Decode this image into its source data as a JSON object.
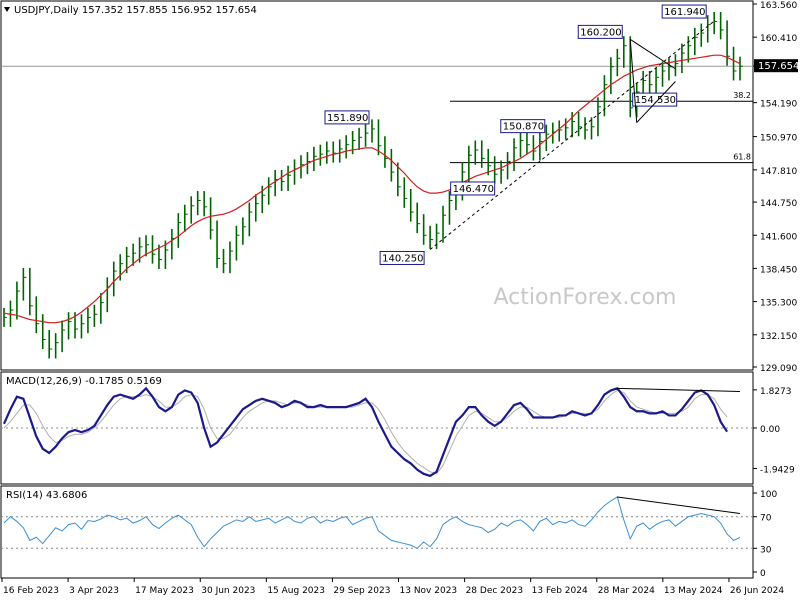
{
  "header": {
    "symbol_line": "USDJPY,Daily  157.352 157.855 156.952 157.654",
    "macd_title": "MACD(12,26,9) -0.1785 0.5169",
    "rsi_title": "RSI(14) 43.6806"
  },
  "watermark": "ActionForex.com",
  "price_badge": "157.654",
  "colors": {
    "candle": "#006400",
    "ma": "#d21e1e",
    "macd": "#1a1a8c",
    "signal": "#b0b0b0",
    "rsi": "#3a8fd6",
    "badge_bg": "#000000",
    "badge_text": "#ffffff"
  },
  "chart_data": [
    {
      "type": "line",
      "title": "",
      "ylim": [
        129.09,
        163.56
      ],
      "y_ticks": [
        "163.560",
        "160.410",
        "157.654",
        "154.190",
        "150.970",
        "147.810",
        "144.750",
        "141.600",
        "138.450",
        "135.300",
        "132.150",
        "129.090"
      ],
      "x_ticks": [
        "16 Feb 2023",
        "3 Apr 2023",
        "17 May 2023",
        "30 Jun 2023",
        "15 Aug 2023",
        "29 Sep 2023",
        "13 Nov 2023",
        "28 Dec 2023",
        "13 Feb 2024",
        "28 Mar 2024",
        "13 May 2024",
        "26 Jun 2024"
      ],
      "series": [
        {
          "values": [
            133.8,
            134.5,
            136.3,
            137.6,
            134.9,
            133.2,
            131.7,
            130.8,
            131.4,
            132.6,
            133.4,
            132.7,
            133.2,
            133.8,
            134.1,
            135.2,
            136.7,
            138.2,
            138.9,
            139.6,
            139.9,
            140.5,
            140.7,
            139.8,
            139.3,
            140.2,
            141.3,
            142.8,
            143.6,
            144.4,
            144.9,
            144.3,
            142.1,
            139.4,
            138.9,
            140.1,
            141.6,
            142.4,
            143.8,
            144.6,
            145.4,
            146.2,
            146.9,
            146.7,
            147.3,
            147.9,
            148.3,
            148.6,
            149.1,
            149.3,
            149.6,
            149.4,
            149.8,
            150.2,
            150.6,
            150.9,
            151.3,
            151.7,
            150.1,
            148.9,
            147.6,
            146.2,
            145.1,
            143.8,
            142.7,
            141.6,
            141.2,
            141.8,
            143.5,
            144.9,
            145.8,
            147.6,
            149.2,
            149.7,
            148.9,
            148.2,
            147.4,
            147.8,
            148.6,
            149.9,
            150.6,
            150.2,
            149.6,
            150.5,
            151.2,
            151.4,
            151.6,
            151.8,
            152.4,
            151.9,
            151.6,
            151.9,
            153.8,
            155.9,
            157.6,
            158.4,
            159.6,
            153.7,
            155.2,
            156.3,
            155.9,
            156.6,
            157.2,
            157.6,
            157.9,
            158.9,
            159.6,
            160.4,
            160.8,
            161.6,
            161.9,
            161.1,
            158.6,
            157.2,
            157.654
          ],
          "color": "#006400"
        },
        {
          "values": [
            134.2,
            134.1,
            134.0,
            133.8,
            133.6,
            133.5,
            133.4,
            133.3,
            133.3,
            133.4,
            133.6,
            133.9,
            134.3,
            134.8,
            135.3,
            135.9,
            136.5,
            137.2,
            137.8,
            138.4,
            138.9,
            139.4,
            139.8,
            140.1,
            140.4,
            140.7,
            141.1,
            141.5,
            142.0,
            142.5,
            142.9,
            143.2,
            143.4,
            143.5,
            143.6,
            143.8,
            144.1,
            144.5,
            144.9,
            145.4,
            145.8,
            146.3,
            146.7,
            147.1,
            147.5,
            147.8,
            148.1,
            148.4,
            148.7,
            148.9,
            149.1,
            149.3,
            149.4,
            149.6,
            149.7,
            149.8,
            149.9,
            149.9,
            149.6,
            149.2,
            148.7,
            148.1,
            147.5,
            146.8,
            146.2,
            145.8,
            145.6,
            145.6,
            145.7,
            145.9,
            146.2,
            146.6,
            146.9,
            147.2,
            147.4,
            147.6,
            147.8,
            148.0,
            148.3,
            148.6,
            148.9,
            149.3,
            149.7,
            150.2,
            150.7,
            151.2,
            151.7,
            152.2,
            152.8,
            153.4,
            153.9,
            154.4,
            154.9,
            155.4,
            155.9,
            156.3,
            156.7,
            157.0,
            157.3,
            157.5,
            157.7,
            157.8,
            157.9,
            158.0,
            158.1,
            158.2,
            158.3,
            158.4,
            158.5,
            158.6,
            158.7,
            158.7,
            158.5,
            158.2,
            157.9
          ],
          "color": "#d21e1e"
        }
      ],
      "annotations": [
        "151.890",
        "150.870",
        "146.470",
        "140.250",
        "160.200",
        "154.530",
        "161.940"
      ],
      "fib_levels": [
        {
          "label": "38.2",
          "value": 154.33
        },
        {
          "label": "61.8",
          "value": 148.5
        }
      ]
    },
    {
      "type": "line",
      "title": "",
      "ylim": [
        -2.4,
        2.3
      ],
      "y_ticks": [
        "1.8273",
        "0.00",
        "-1.9429"
      ],
      "series": [
        {
          "values": [
            0.2,
            0.9,
            1.5,
            1.4,
            0.5,
            -0.4,
            -1.0,
            -1.2,
            -0.9,
            -0.5,
            -0.2,
            -0.1,
            -0.2,
            -0.1,
            0.1,
            0.6,
            1.1,
            1.5,
            1.6,
            1.5,
            1.4,
            1.6,
            1.9,
            1.5,
            1.0,
            0.8,
            1.0,
            1.6,
            1.8,
            1.7,
            1.2,
            0.0,
            -0.9,
            -0.7,
            -0.3,
            0.1,
            0.5,
            0.9,
            1.1,
            1.3,
            1.4,
            1.3,
            1.2,
            1.0,
            1.1,
            1.3,
            1.2,
            1.0,
            1.0,
            1.1,
            1.0,
            1.0,
            1.0,
            1.0,
            1.1,
            1.2,
            1.4,
            1.0,
            0.3,
            -0.3,
            -0.9,
            -1.2,
            -1.5,
            -1.7,
            -2.0,
            -2.2,
            -2.3,
            -2.1,
            -1.3,
            -0.5,
            0.3,
            0.6,
            1.0,
            1.0,
            0.6,
            0.3,
            0.1,
            0.3,
            0.7,
            1.1,
            1.2,
            0.9,
            0.5,
            0.5,
            0.5,
            0.5,
            0.6,
            0.6,
            0.8,
            0.7,
            0.6,
            0.7,
            1.1,
            1.6,
            1.8,
            1.9,
            1.5,
            1.0,
            0.8,
            0.8,
            0.7,
            0.7,
            0.8,
            0.6,
            0.6,
            0.9,
            1.3,
            1.7,
            1.8,
            1.6,
            1.1,
            0.3,
            -0.18
          ],
          "color": "#1a1a8c"
        },
        {
          "values": [
            0.0,
            0.3,
            0.7,
            1.1,
            1.1,
            0.7,
            0.1,
            -0.4,
            -0.7,
            -0.6,
            -0.4,
            -0.3,
            -0.3,
            -0.2,
            0.0,
            0.3,
            0.7,
            1.1,
            1.4,
            1.5,
            1.5,
            1.5,
            1.6,
            1.5,
            1.3,
            1.0,
            1.0,
            1.2,
            1.5,
            1.6,
            1.5,
            0.9,
            0.0,
            -0.5,
            -0.5,
            -0.3,
            0.1,
            0.5,
            0.8,
            1.0,
            1.2,
            1.3,
            1.3,
            1.2,
            1.1,
            1.2,
            1.2,
            1.1,
            1.0,
            1.0,
            1.0,
            1.0,
            1.0,
            1.0,
            1.0,
            1.1,
            1.2,
            1.2,
            0.9,
            0.4,
            -0.2,
            -0.7,
            -1.1,
            -1.4,
            -1.7,
            -1.9,
            -2.1,
            -2.2,
            -1.8,
            -1.1,
            -0.4,
            0.1,
            0.6,
            0.8,
            0.7,
            0.5,
            0.3,
            0.3,
            0.5,
            0.8,
            1.0,
            1.0,
            0.8,
            0.6,
            0.5,
            0.5,
            0.5,
            0.6,
            0.7,
            0.7,
            0.7,
            0.7,
            0.9,
            1.3,
            1.6,
            1.8,
            1.7,
            1.3,
            1.0,
            0.9,
            0.8,
            0.7,
            0.7,
            0.7,
            0.7,
            0.8,
            1.0,
            1.4,
            1.6,
            1.6,
            1.4,
            0.9,
            0.52
          ],
          "color": "#b0b0b0"
        }
      ],
      "reference_line": 0
    },
    {
      "type": "line",
      "title": "",
      "ylim": [
        0,
        100
      ],
      "y_ticks": [
        "100",
        "70",
        "30",
        "0"
      ],
      "series": [
        {
          "values": [
            62,
            70,
            64,
            56,
            40,
            44,
            36,
            46,
            56,
            52,
            60,
            62,
            54,
            65,
            64,
            67,
            72,
            70,
            66,
            68,
            62,
            65,
            70,
            60,
            55,
            62,
            68,
            72,
            66,
            60,
            44,
            32,
            42,
            50,
            58,
            62,
            66,
            64,
            70,
            64,
            66,
            68,
            62,
            66,
            70,
            64,
            62,
            68,
            70,
            62,
            66,
            64,
            68,
            70,
            60,
            64,
            68,
            70,
            52,
            46,
            40,
            38,
            36,
            34,
            30,
            38,
            32,
            42,
            60,
            66,
            70,
            64,
            60,
            58,
            56,
            50,
            54,
            62,
            58,
            64,
            66,
            60,
            52,
            64,
            68,
            60,
            64,
            62,
            66,
            60,
            58,
            66,
            76,
            84,
            90,
            95,
            66,
            42,
            58,
            62,
            54,
            60,
            64,
            66,
            58,
            64,
            70,
            72,
            74,
            72,
            70,
            62,
            48,
            40,
            43.68
          ],
          "color": "#3a8fd6"
        }
      ],
      "levels": [
        70,
        30
      ]
    }
  ]
}
